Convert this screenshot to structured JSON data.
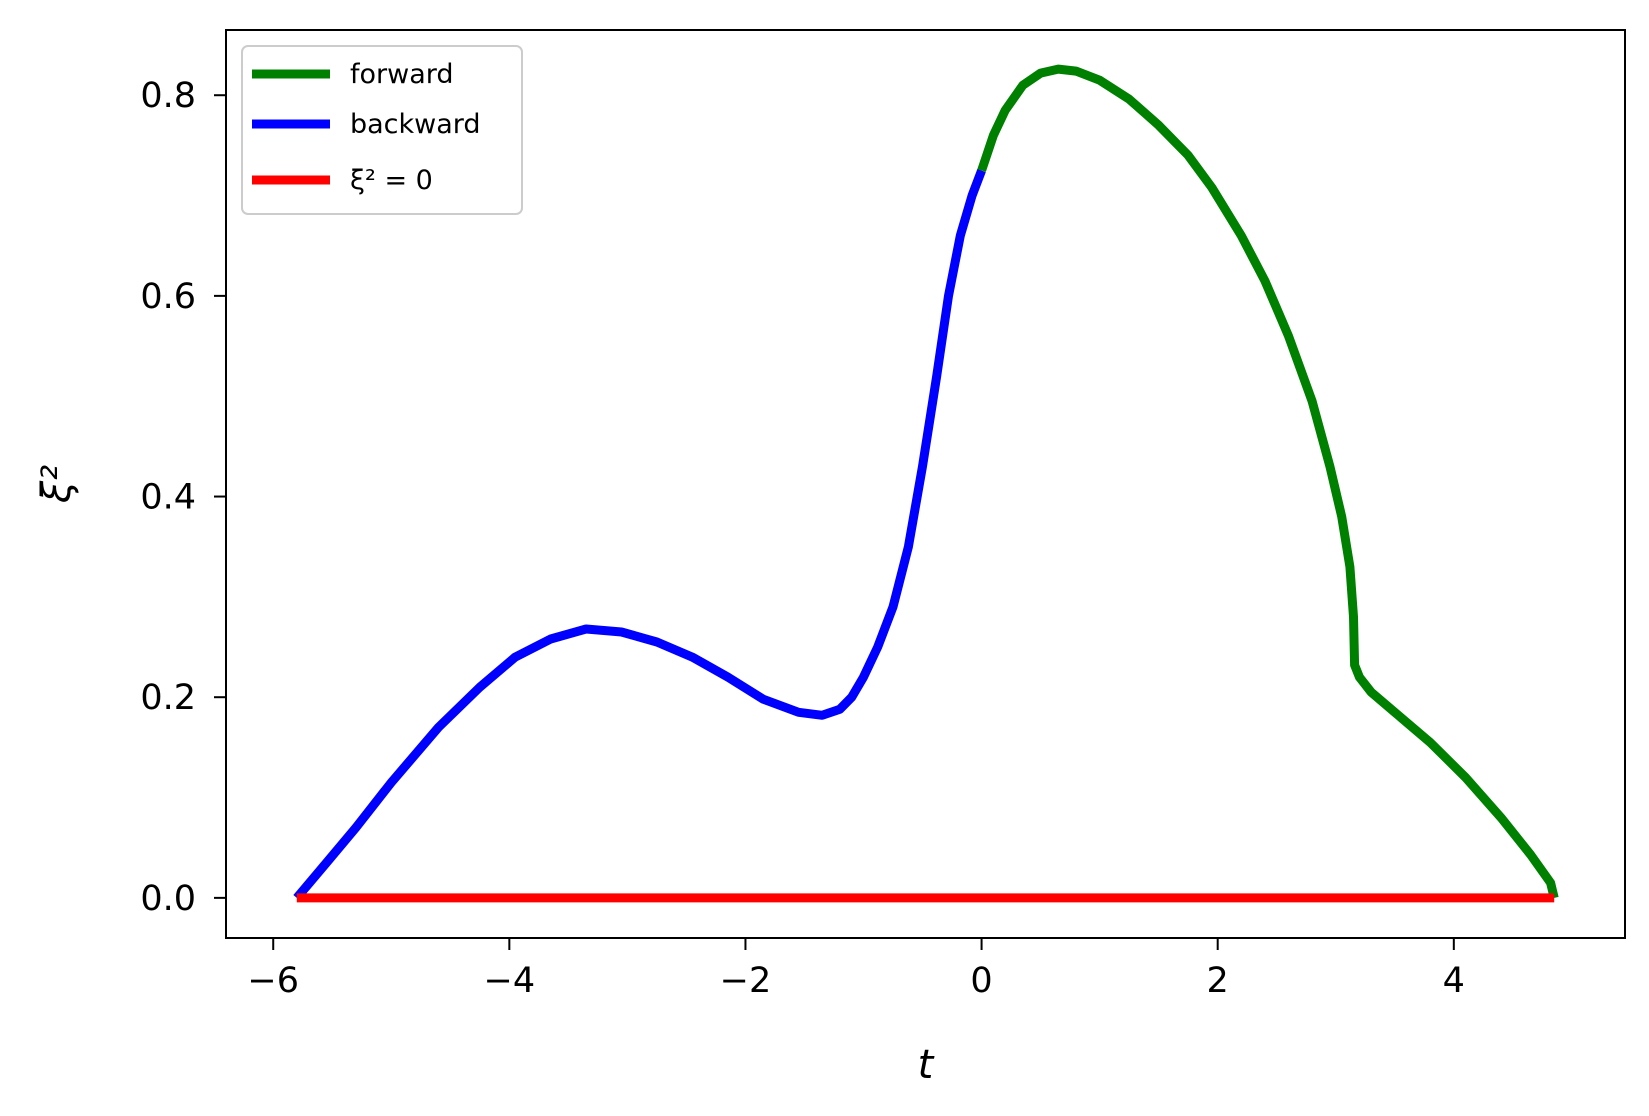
{
  "chart_data": {
    "type": "line",
    "title": "",
    "xlabel": "t",
    "ylabel": "ξ²",
    "xlim": [
      -6.4,
      5.45
    ],
    "ylim": [
      -0.04,
      0.865
    ],
    "x_ticks": [
      -6,
      -4,
      -2,
      0,
      2,
      4
    ],
    "x_tick_labels": [
      "−6",
      "−4",
      "−2",
      "0",
      "2",
      "4"
    ],
    "y_ticks": [
      0.0,
      0.2,
      0.4,
      0.6,
      0.8
    ],
    "y_tick_labels": [
      "0.0",
      "0.2",
      "0.4",
      "0.6",
      "0.8"
    ],
    "grid": false,
    "legend_position": "upper-left",
    "series": [
      {
        "name": "forward",
        "color": "#008000",
        "x": [
          0.0,
          0.1,
          0.2,
          0.35,
          0.5,
          0.65,
          0.8,
          1.0,
          1.25,
          1.5,
          1.75,
          1.95,
          2.2,
          2.4,
          2.6,
          2.8,
          2.95,
          3.05,
          3.12,
          3.15,
          3.16,
          3.2,
          3.3,
          3.5,
          3.8,
          4.1,
          4.4,
          4.65,
          4.82,
          4.85
        ],
        "y": [
          0.725,
          0.76,
          0.785,
          0.81,
          0.822,
          0.826,
          0.824,
          0.815,
          0.796,
          0.77,
          0.74,
          0.708,
          0.66,
          0.615,
          0.56,
          0.495,
          0.43,
          0.38,
          0.33,
          0.28,
          0.232,
          0.22,
          0.205,
          0.185,
          0.155,
          0.12,
          0.08,
          0.043,
          0.015,
          0.0
        ]
      },
      {
        "name": "backward",
        "color": "#0000ff",
        "x": [
          -5.8,
          -5.55,
          -5.3,
          -5.0,
          -4.6,
          -4.25,
          -3.95,
          -3.65,
          -3.35,
          -3.05,
          -2.75,
          -2.45,
          -2.15,
          -1.85,
          -1.55,
          -1.35,
          -1.2,
          -1.1,
          -1.0,
          -0.88,
          -0.75,
          -0.62,
          -0.5,
          -0.38,
          -0.28,
          -0.18,
          -0.08,
          0.0
        ],
        "y": [
          0.0,
          0.035,
          0.07,
          0.115,
          0.17,
          0.21,
          0.24,
          0.258,
          0.268,
          0.265,
          0.255,
          0.24,
          0.22,
          0.198,
          0.185,
          0.182,
          0.188,
          0.2,
          0.22,
          0.25,
          0.29,
          0.35,
          0.43,
          0.52,
          0.6,
          0.66,
          0.7,
          0.725
        ]
      },
      {
        "name": "ξ² = 0",
        "color": "#ff0000",
        "x": [
          -5.8,
          4.85
        ],
        "y": [
          0.0,
          0.0
        ]
      }
    ]
  }
}
